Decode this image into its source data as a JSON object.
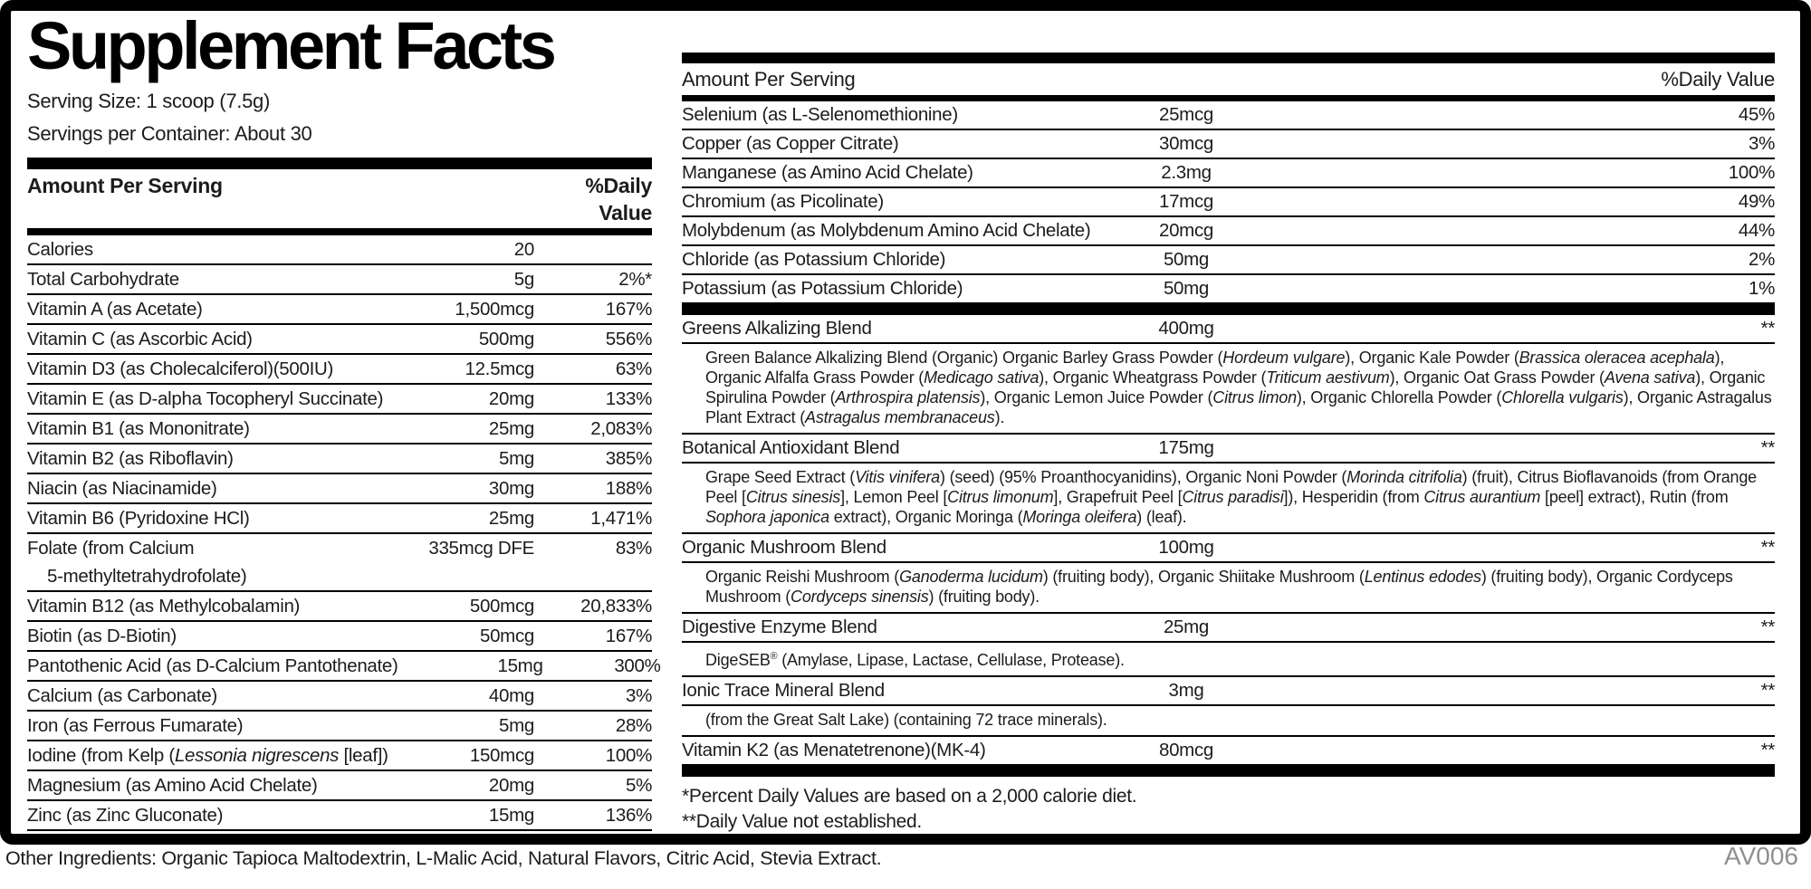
{
  "label": {
    "title": "Supplement Facts",
    "serving_size": "Serving Size: 1 scoop (7.5g)",
    "servings_per_container": "Servings per Container: About 30",
    "other_ingredients": "Other Ingredients: Organic Tapioca Maltodextrin, L-Malic Acid, Natural Flavors, Citric Acid, Stevia Extract.",
    "code": "AV006",
    "footnotes": [
      "*Percent Daily Values are based on a 2,000 calorie diet.",
      "**Daily Value not established."
    ],
    "colors": {
      "ink": "#1d1b1b",
      "bar_black": "#000000",
      "code_gray": "#8f8f8f"
    }
  },
  "left_table": {
    "header": {
      "amount_label": "Amount Per Serving",
      "dv_label": "%Daily Value"
    },
    "rows": [
      {
        "name": [
          {
            "t": "Calories"
          }
        ],
        "amount": "20",
        "dv": ""
      },
      {
        "name": [
          {
            "t": "Total Carbohydrate"
          }
        ],
        "amount": "5g",
        "dv": "2%*"
      },
      {
        "name": [
          {
            "t": "Vitamin A (as Acetate)"
          }
        ],
        "amount": "1,500mcg",
        "dv": "167%"
      },
      {
        "name": [
          {
            "t": "Vitamin C (as Ascorbic Acid)"
          }
        ],
        "amount": "500mg",
        "dv": "556%"
      },
      {
        "name": [
          {
            "t": "Vitamin D3 (as Cholecalciferol)(500IU)"
          }
        ],
        "amount": "12.5mcg",
        "dv": "63%"
      },
      {
        "name": [
          {
            "t": "Vitamin E (as D-alpha Tocopheryl Succinate)"
          }
        ],
        "amount": "20mg",
        "dv": "133%"
      },
      {
        "name": [
          {
            "t": "Vitamin B1 (as Mononitrate)"
          }
        ],
        "amount": "25mg",
        "dv": "2,083%"
      },
      {
        "name": [
          {
            "t": "Vitamin B2 (as Riboflavin)"
          }
        ],
        "amount": "5mg",
        "dv": "385%"
      },
      {
        "name": [
          {
            "t": "Niacin (as Niacinamide)"
          }
        ],
        "amount": "30mg",
        "dv": "188%"
      },
      {
        "name": [
          {
            "t": "Vitamin B6 (Pyridoxine HCl)"
          }
        ],
        "amount": "25mg",
        "dv": "1,471%"
      },
      {
        "name": [
          {
            "t": "Folate (from Calcium"
          },
          {
            "br": true
          },
          {
            "t": "5-methyltetrahydrofolate)",
            "ml": 22
          }
        ],
        "amount": "335mcg DFE",
        "dv": "83%"
      },
      {
        "name": [
          {
            "t": "Vitamin B12 (as Methylcobalamin)"
          }
        ],
        "amount": "500mcg",
        "dv": "20,833%"
      },
      {
        "name": [
          {
            "t": "Biotin (as D-Biotin)"
          }
        ],
        "amount": "50mcg",
        "dv": "167%"
      },
      {
        "name": [
          {
            "t": "Pantothenic Acid (as D-Calcium Pantothenate)"
          }
        ],
        "amount": "15mg",
        "dv": "300%"
      },
      {
        "name": [
          {
            "t": "Calcium (as Carbonate)"
          }
        ],
        "amount": "40mg",
        "dv": "3%"
      },
      {
        "name": [
          {
            "t": "Iron (as Ferrous Fumarate)"
          }
        ],
        "amount": "5mg",
        "dv": "28%"
      },
      {
        "name": [
          {
            "t": "Iodine (from Kelp ("
          },
          {
            "t": "Lessonia nigrescens",
            "i": true
          },
          {
            "t": " [leaf])"
          }
        ],
        "amount": "150mcg",
        "dv": "100%"
      },
      {
        "name": [
          {
            "t": "Magnesium (as Amino Acid Chelate)"
          }
        ],
        "amount": "20mg",
        "dv": "5%"
      },
      {
        "name": [
          {
            "t": "Zinc (as Zinc Gluconate)"
          }
        ],
        "amount": "15mg",
        "dv": "136%"
      }
    ]
  },
  "right_table": {
    "header": {
      "amount_label": "Amount Per Serving",
      "dv_label": "%Daily Value"
    },
    "items": [
      {
        "type": "row",
        "name": [
          {
            "t": "Selenium (as L-Selenomethionine)"
          }
        ],
        "amount": "25mcg",
        "dv": "45%"
      },
      {
        "type": "row",
        "name": [
          {
            "t": "Copper (as Copper Citrate)"
          }
        ],
        "amount": "30mcg",
        "dv": "3%"
      },
      {
        "type": "row",
        "name": [
          {
            "t": "Manganese (as Amino Acid Chelate)"
          }
        ],
        "amount": "2.3mg",
        "dv": "100%"
      },
      {
        "type": "row",
        "name": [
          {
            "t": "Chromium (as Picolinate)"
          }
        ],
        "amount": "17mcg",
        "dv": "49%"
      },
      {
        "type": "row",
        "name": [
          {
            "t": "Molybdenum (as Molybdenum Amino Acid Chelate)"
          }
        ],
        "amount": "20mcg",
        "dv": "44%"
      },
      {
        "type": "row",
        "name": [
          {
            "t": "Chloride (as Potassium Chloride)"
          }
        ],
        "amount": "50mg",
        "dv": "2%"
      },
      {
        "type": "row",
        "name": [
          {
            "t": "Potassium (as Potassium Chloride)"
          }
        ],
        "amount": "50mg",
        "dv": "1%"
      },
      {
        "type": "bar"
      },
      {
        "type": "row",
        "name": [
          {
            "t": "Greens Alkalizing Blend"
          }
        ],
        "amount": "400mg",
        "dv": "**"
      },
      {
        "type": "desc",
        "segments": [
          {
            "t": "Green Balance Alkalizing Blend (Organic) Organic Barley Grass Powder ("
          },
          {
            "t": "Hordeum vulgare",
            "i": true
          },
          {
            "t": "), Organic Kale Powder ("
          },
          {
            "t": "Brassica oleracea acephala",
            "i": true
          },
          {
            "t": "), Organic Alfalfa Grass Powder ("
          },
          {
            "t": "Medicago sativa",
            "i": true
          },
          {
            "t": "), Organic Wheatgrass Powder ("
          },
          {
            "t": "Triticum aestivum",
            "i": true
          },
          {
            "t": "), Organic Oat Grass Powder ("
          },
          {
            "t": "Avena sativa",
            "i": true
          },
          {
            "t": "), Organic Spirulina Powder ("
          },
          {
            "t": "Arthrospira platensis",
            "i": true
          },
          {
            "t": "), Organic Lemon Juice Powder ("
          },
          {
            "t": "Citrus limon",
            "i": true
          },
          {
            "t": "), Organic Chlorella Powder ("
          },
          {
            "t": "Chlorella vulgaris",
            "i": true
          },
          {
            "t": "), Organic Astragalus Plant Extract ("
          },
          {
            "t": "Astragalus membranaceus",
            "i": true
          },
          {
            "t": ")."
          }
        ]
      },
      {
        "type": "row",
        "name": [
          {
            "t": "Botanical Antioxidant Blend"
          }
        ],
        "amount": "175mg",
        "dv": "**"
      },
      {
        "type": "desc",
        "segments": [
          {
            "t": "Grape Seed Extract ("
          },
          {
            "t": "Vitis vinifera",
            "i": true
          },
          {
            "t": ") (seed) (95% Proanthocyanidins), Organic Noni Powder ("
          },
          {
            "t": "Morinda citrifolia",
            "i": true
          },
          {
            "t": ") (fruit), Citrus Bioflavanoids (from Orange Peel ["
          },
          {
            "t": "Citrus sinesis",
            "i": true
          },
          {
            "t": "], Lemon Peel ["
          },
          {
            "t": "Citrus limonum",
            "i": true
          },
          {
            "t": "], Grapefruit Peel ["
          },
          {
            "t": "Citrus paradisi",
            "i": true
          },
          {
            "t": "]), Hesperidin (from "
          },
          {
            "t": "Citrus aurantium",
            "i": true
          },
          {
            "t": " [peel] extract), Rutin (from "
          },
          {
            "t": "Sophora japonica",
            "i": true
          },
          {
            "t": " extract), Organic Moringa ("
          },
          {
            "t": "Moringa oleifera",
            "i": true
          },
          {
            "t": ") (leaf)."
          }
        ]
      },
      {
        "type": "row",
        "name": [
          {
            "t": "Organic Mushroom Blend"
          }
        ],
        "amount": "100mg",
        "dv": "**"
      },
      {
        "type": "desc",
        "segments": [
          {
            "t": "Organic Reishi Mushroom ("
          },
          {
            "t": "Ganoderma lucidum",
            "i": true
          },
          {
            "t": ") (fruiting body), Organic Shiitake Mushroom ("
          },
          {
            "t": "Lentinus edodes",
            "i": true
          },
          {
            "t": ") (fruiting body), Organic Cordyceps Mushroom ("
          },
          {
            "t": "Cordyceps sinensis",
            "i": true
          },
          {
            "t": ") (fruiting body)."
          }
        ]
      },
      {
        "type": "row",
        "name": [
          {
            "t": "Digestive Enzyme Blend"
          }
        ],
        "amount": "25mg",
        "dv": "**"
      },
      {
        "type": "desc",
        "segments": [
          {
            "t": "DigeSEB"
          },
          {
            "t": "®",
            "sup": true
          },
          {
            "t": " (Amylase, Lipase, Lactase, Cellulase, Protease)."
          }
        ]
      },
      {
        "type": "row",
        "name": [
          {
            "t": "Ionic Trace Mineral Blend"
          }
        ],
        "amount": "3mg",
        "dv": "**"
      },
      {
        "type": "desc",
        "segments": [
          {
            "t": "(from the Great Salt Lake) (containing 72 trace minerals)."
          }
        ]
      },
      {
        "type": "row",
        "name": [
          {
            "t": "Vitamin K2 (as Menatetrenone)(MK-4)"
          }
        ],
        "amount": "80mcg",
        "dv": "**"
      },
      {
        "type": "bar"
      }
    ]
  }
}
